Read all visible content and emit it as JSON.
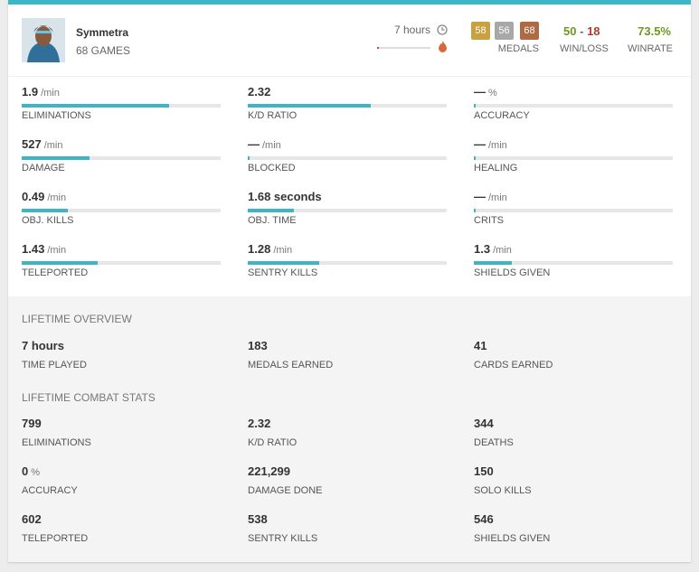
{
  "hero": {
    "name": "Symmetra",
    "games": "68 GAMES",
    "time": "7 hours",
    "time_bar": 3
  },
  "medals": {
    "gold": "58",
    "silver": "56",
    "bronze": "68",
    "label": "MEDALS"
  },
  "record": {
    "wins": "50",
    "separator": "-",
    "losses": "18",
    "label": "WIN/LOSS"
  },
  "winrate": {
    "value": "73.5%",
    "label": "WINRATE"
  },
  "stats": [
    {
      "value": "1.9",
      "unit": "/min",
      "label": "ELIMINATIONS",
      "bar": 74
    },
    {
      "value": "2.32",
      "label": "K/D RATIO",
      "bar": 62
    },
    {
      "value": "—",
      "unit": "%",
      "label": "ACCURACY",
      "bar": 1
    },
    {
      "value": "527",
      "unit": "/min",
      "label": "DAMAGE",
      "bar": 34
    },
    {
      "value": "—",
      "unit": "/min",
      "label": "BLOCKED",
      "bar": 1
    },
    {
      "value": "—",
      "unit": "/min",
      "label": "HEALING",
      "bar": 1
    },
    {
      "value": "0.49",
      "unit": "/min",
      "label": "OBJ. KILLS",
      "bar": 23
    },
    {
      "value": "1.68 seconds",
      "label": "OBJ. TIME",
      "bar": 23
    },
    {
      "value": "—",
      "unit": "/min",
      "label": "CRITS",
      "bar": 1
    },
    {
      "value": "1.43",
      "unit": "/min",
      "label": "TELEPORTED",
      "bar": 38
    },
    {
      "value": "1.28",
      "unit": "/min",
      "label": "SENTRY KILLS",
      "bar": 36
    },
    {
      "value": "1.3",
      "unit": "/min",
      "label": "SHIELDS GIVEN",
      "bar": 19
    }
  ],
  "lifetime_overview": {
    "title": "LIFETIME OVERVIEW",
    "items": [
      {
        "value": "7 hours",
        "label": "TIME PLAYED"
      },
      {
        "value": "183",
        "label": "MEDALS EARNED"
      },
      {
        "value": "41",
        "label": "CARDS EARNED"
      }
    ]
  },
  "lifetime_combat": {
    "title": "LIFETIME COMBAT STATS",
    "items": [
      {
        "value": "799",
        "label": "ELIMINATIONS"
      },
      {
        "value": "2.32",
        "label": "K/D RATIO"
      },
      {
        "value": "344",
        "label": "DEATHS"
      },
      {
        "value": "0",
        "unit": "%",
        "label": "ACCURACY"
      },
      {
        "value": "221,299",
        "label": "DAMAGE DONE"
      },
      {
        "value": "150",
        "label": "SOLO KILLS"
      },
      {
        "value": "602",
        "label": "TELEPORTED"
      },
      {
        "value": "538",
        "label": "SENTRY KILLS"
      },
      {
        "value": "546",
        "label": "SHIELDS GIVEN"
      }
    ]
  }
}
